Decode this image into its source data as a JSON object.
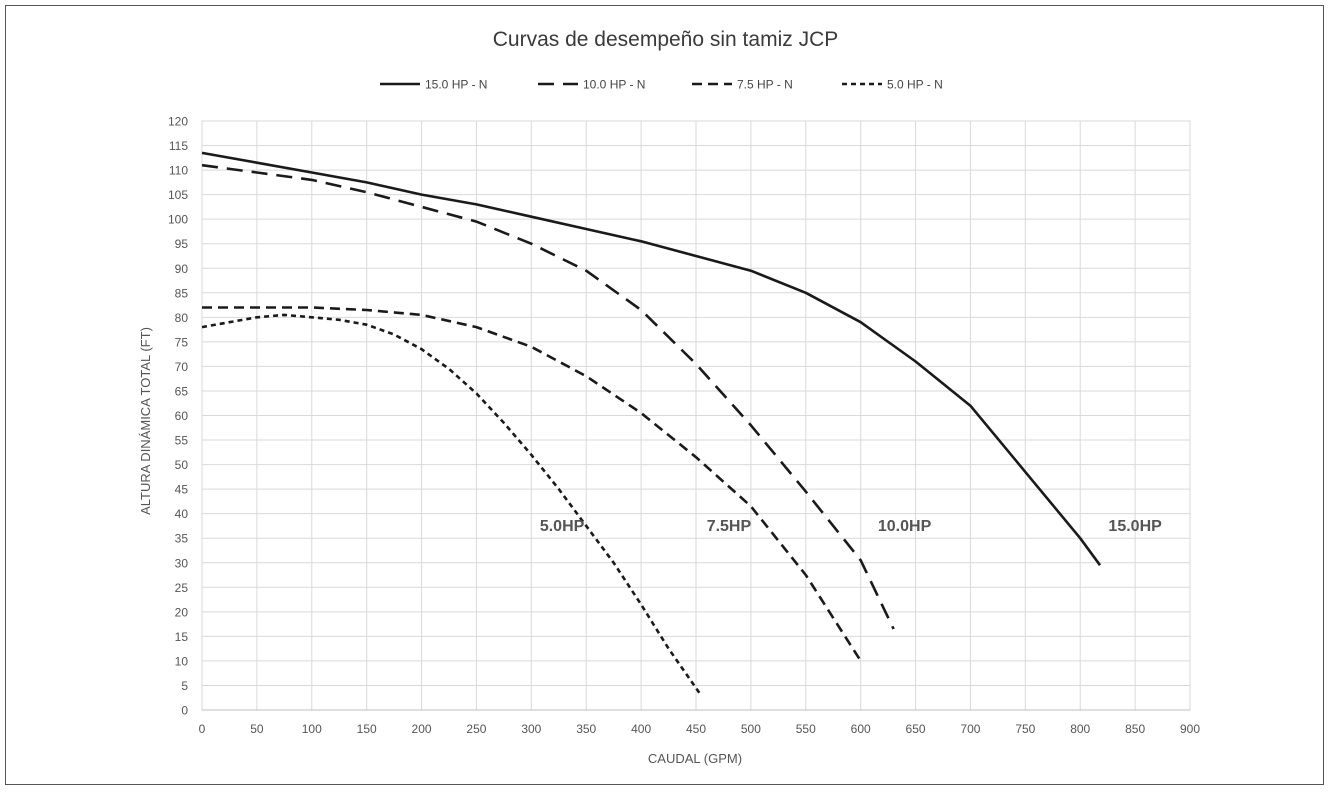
{
  "chart_data": {
    "type": "line",
    "title": "Curvas de desempeño sin tamiz JCP",
    "xlabel": "CAUDAL (GPM)",
    "ylabel": "ALTURA DINÁMICA TOTAL (FT)",
    "xlim": [
      0,
      900
    ],
    "ylim": [
      0,
      120
    ],
    "xticks": [
      0,
      50,
      100,
      150,
      200,
      250,
      300,
      350,
      400,
      450,
      500,
      550,
      600,
      650,
      700,
      750,
      800,
      850,
      900
    ],
    "yticks": [
      0,
      5,
      10,
      15,
      20,
      25,
      30,
      35,
      40,
      45,
      50,
      55,
      60,
      65,
      70,
      75,
      80,
      85,
      90,
      95,
      100,
      105,
      110,
      115,
      120
    ],
    "grid": true,
    "legend_position": "top",
    "series": [
      {
        "name": "15.0 HP - N",
        "dash": "solid",
        "annotation": "15.0HP",
        "annotation_at": [
          850,
          37.5
        ],
        "x": [
          0,
          50,
          100,
          150,
          200,
          250,
          300,
          350,
          400,
          450,
          500,
          550,
          600,
          650,
          700,
          750,
          800,
          818
        ],
        "y": [
          113.5,
          111.5,
          109.5,
          107.5,
          105,
          103,
          100.5,
          98,
          95.5,
          92.5,
          89.5,
          85,
          79,
          71,
          62,
          48.5,
          35,
          29.5
        ]
      },
      {
        "name": "10.0 HP - N",
        "dash": "long-dash",
        "annotation": "10.0HP",
        "annotation_at": [
          640,
          37.5
        ],
        "x": [
          0,
          50,
          100,
          150,
          200,
          250,
          300,
          350,
          400,
          450,
          500,
          550,
          600,
          630
        ],
        "y": [
          111,
          109.5,
          108,
          105.5,
          102.5,
          99.5,
          95,
          89.5,
          81.5,
          70.5,
          58,
          44.5,
          30.5,
          16.5
        ]
      },
      {
        "name": "7.5 HP - N",
        "dash": "medium-dash",
        "annotation": "7.5HP",
        "annotation_at": [
          480,
          37.5
        ],
        "x": [
          0,
          50,
          100,
          150,
          200,
          250,
          300,
          350,
          400,
          450,
          500,
          550,
          600
        ],
        "y": [
          82,
          82,
          82,
          81.5,
          80.5,
          78,
          74,
          68,
          60.5,
          51.5,
          41.5,
          27.5,
          10
        ]
      },
      {
        "name": "5.0 HP - N",
        "dash": "short-dash",
        "annotation": "5.0HP",
        "annotation_at": [
          328,
          37.5
        ],
        "x": [
          0,
          25,
          50,
          75,
          100,
          125,
          150,
          175,
          200,
          225,
          250,
          275,
          300,
          325,
          350,
          375,
          400,
          425,
          453
        ],
        "y": [
          78,
          79,
          80,
          80.5,
          80,
          79.5,
          78.5,
          76.5,
          73.5,
          69.5,
          64.5,
          58.5,
          52,
          45,
          37.5,
          30,
          21.5,
          12.5,
          3.5
        ]
      }
    ]
  }
}
